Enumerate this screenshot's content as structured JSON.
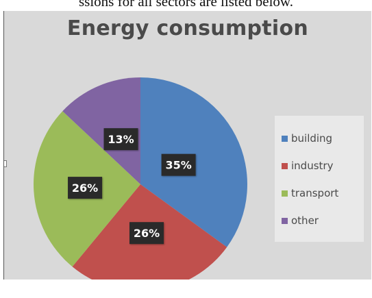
{
  "caption": "ssions for all sectors are listed below.",
  "chart_data": {
    "type": "pie",
    "title": "Energy consumption",
    "categories": [
      "building",
      "industry",
      "transport",
      "other"
    ],
    "values": [
      35,
      26,
      26,
      13
    ],
    "data_labels": [
      "35%",
      "26%",
      "26%",
      "13%"
    ],
    "colors": [
      "#4f81bd",
      "#c0504d",
      "#9bbb59",
      "#8064a2"
    ],
    "start_angle_deg": 0,
    "direction": "clockwise",
    "legend_position": "right"
  }
}
